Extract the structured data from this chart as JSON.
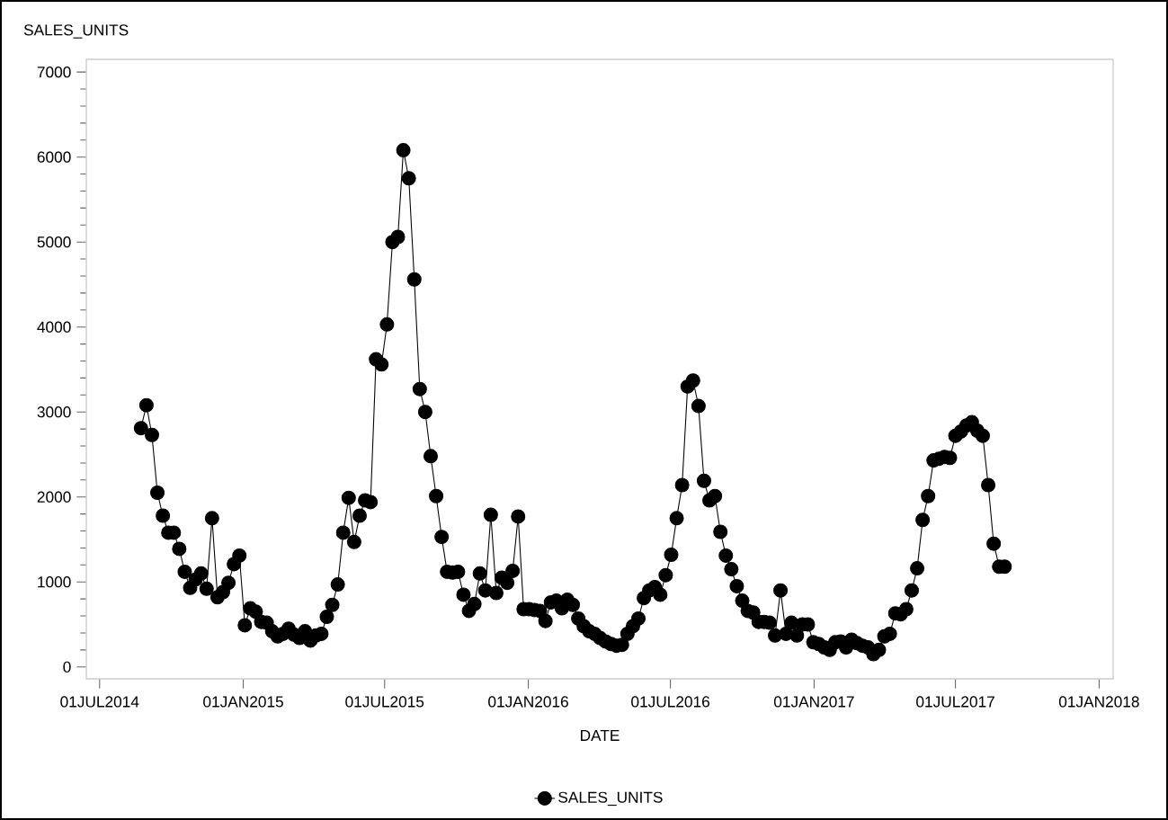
{
  "chart_data": {
    "type": "line",
    "ylabel": "SALES_UNITS",
    "xlabel": "DATE",
    "x": [
      "2014-08-23",
      "2014-08-30",
      "2014-09-06",
      "2014-09-13",
      "2014-09-20",
      "2014-09-27",
      "2014-10-04",
      "2014-10-11",
      "2014-10-18",
      "2014-10-25",
      "2014-11-01",
      "2014-11-08",
      "2014-11-15",
      "2014-11-22",
      "2014-11-29",
      "2014-12-06",
      "2014-12-13",
      "2014-12-20",
      "2014-12-27",
      "2015-01-03",
      "2015-01-10",
      "2015-01-17",
      "2015-01-24",
      "2015-01-31",
      "2015-02-07",
      "2015-02-14",
      "2015-02-21",
      "2015-02-28",
      "2015-03-07",
      "2015-03-14",
      "2015-03-21",
      "2015-03-28",
      "2015-04-04",
      "2015-04-11",
      "2015-04-18",
      "2015-04-25",
      "2015-05-02",
      "2015-05-09",
      "2015-05-16",
      "2015-05-23",
      "2015-05-30",
      "2015-06-06",
      "2015-06-13",
      "2015-06-20",
      "2015-06-27",
      "2015-07-04",
      "2015-07-11",
      "2015-07-18",
      "2015-07-25",
      "2015-08-01",
      "2015-08-08",
      "2015-08-15",
      "2015-08-22",
      "2015-08-29",
      "2015-09-05",
      "2015-09-12",
      "2015-09-19",
      "2015-09-26",
      "2015-10-03",
      "2015-10-10",
      "2015-10-17",
      "2015-10-24",
      "2015-10-31",
      "2015-11-07",
      "2015-11-14",
      "2015-11-21",
      "2015-11-28",
      "2015-12-05",
      "2015-12-12",
      "2015-12-19",
      "2015-12-26",
      "2016-01-02",
      "2016-01-09",
      "2016-01-16",
      "2016-01-23",
      "2016-01-30",
      "2016-02-06",
      "2016-02-13",
      "2016-02-20",
      "2016-02-27",
      "2016-03-05",
      "2016-03-12",
      "2016-03-19",
      "2016-03-26",
      "2016-04-02",
      "2016-04-09",
      "2016-04-16",
      "2016-04-23",
      "2016-04-30",
      "2016-05-07",
      "2016-05-14",
      "2016-05-21",
      "2016-05-28",
      "2016-06-04",
      "2016-06-11",
      "2016-06-18",
      "2016-06-25",
      "2016-07-02",
      "2016-07-09",
      "2016-07-16",
      "2016-07-23",
      "2016-07-30",
      "2016-08-06",
      "2016-08-13",
      "2016-08-20",
      "2016-08-27",
      "2016-09-03",
      "2016-09-10",
      "2016-09-17",
      "2016-09-24",
      "2016-10-01",
      "2016-10-08",
      "2016-10-15",
      "2016-10-22",
      "2016-10-29",
      "2016-11-05",
      "2016-11-12",
      "2016-11-19",
      "2016-11-26",
      "2016-12-03",
      "2016-12-10",
      "2016-12-17",
      "2016-12-24",
      "2016-12-31",
      "2017-01-07",
      "2017-01-14",
      "2017-01-21",
      "2017-01-28",
      "2017-02-04",
      "2017-02-11",
      "2017-02-18",
      "2017-02-25",
      "2017-03-04",
      "2017-03-11",
      "2017-03-18",
      "2017-03-25",
      "2017-04-01",
      "2017-04-08",
      "2017-04-15",
      "2017-04-22",
      "2017-04-29",
      "2017-05-06",
      "2017-05-13",
      "2017-05-20",
      "2017-05-27",
      "2017-06-03",
      "2017-06-10",
      "2017-06-17",
      "2017-06-24",
      "2017-07-01",
      "2017-07-08",
      "2017-07-15",
      "2017-07-22",
      "2017-07-29",
      "2017-08-05",
      "2017-08-12",
      "2017-08-19",
      "2017-08-26",
      "2017-09-02"
    ],
    "series": [
      {
        "name": "SALES_UNITS",
        "color": "#000000",
        "values": [
          2810,
          3080,
          2730,
          2050,
          1780,
          1580,
          1580,
          1390,
          1120,
          930,
          1030,
          1100,
          920,
          1750,
          820,
          880,
          990,
          1210,
          1310,
          490,
          690,
          650,
          530,
          520,
          420,
          360,
          390,
          450,
          380,
          340,
          420,
          310,
          370,
          390,
          590,
          730,
          970,
          1580,
          1990,
          1470,
          1780,
          1960,
          1940,
          3620,
          3560,
          4030,
          5000,
          5060,
          6080,
          5750,
          4560,
          3270,
          3000,
          2480,
          2010,
          1530,
          1120,
          1110,
          1120,
          850,
          660,
          740,
          1100,
          900,
          1790,
          870,
          1050,
          990,
          1130,
          1770,
          680,
          680,
          670,
          660,
          540,
          760,
          780,
          690,
          790,
          730,
          570,
          480,
          420,
          390,
          340,
          300,
          270,
          250,
          260,
          390,
          480,
          570,
          810,
          900,
          940,
          850,
          1080,
          1320,
          1750,
          2140,
          3300,
          3370,
          3070,
          2190,
          1960,
          2010,
          1590,
          1310,
          1150,
          950,
          780,
          660,
          640,
          530,
          530,
          520,
          370,
          900,
          390,
          520,
          370,
          500,
          500,
          290,
          270,
          230,
          200,
          290,
          300,
          230,
          320,
          280,
          250,
          230,
          150,
          200,
          360,
          390,
          630,
          620,
          680,
          900,
          1160,
          1730,
          2010,
          2430,
          2450,
          2470,
          2460,
          2720,
          2770,
          2840,
          2880,
          2780,
          2720,
          2140,
          1450,
          1180,
          1180
        ]
      }
    ],
    "xlim": [
      "2014-06-14",
      "2018-01-19"
    ],
    "ylim": [
      -140,
      7150
    ],
    "xticks": [
      {
        "value": "2014-07-01",
        "label": "01JUL2014"
      },
      {
        "value": "2015-01-01",
        "label": "01JAN2015"
      },
      {
        "value": "2015-07-01",
        "label": "01JUL2015"
      },
      {
        "value": "2016-01-01",
        "label": "01JAN2016"
      },
      {
        "value": "2016-07-01",
        "label": "01JUL2016"
      },
      {
        "value": "2017-01-01",
        "label": "01JAN2017"
      },
      {
        "value": "2017-07-01",
        "label": "01JUL2017"
      },
      {
        "value": "2018-01-01",
        "label": "01JAN2018"
      }
    ],
    "yticks": [
      0,
      1000,
      2000,
      3000,
      4000,
      5000,
      6000,
      7000
    ],
    "marker": "circle",
    "line_style": "solid",
    "legend": "bottom",
    "grid": false
  }
}
